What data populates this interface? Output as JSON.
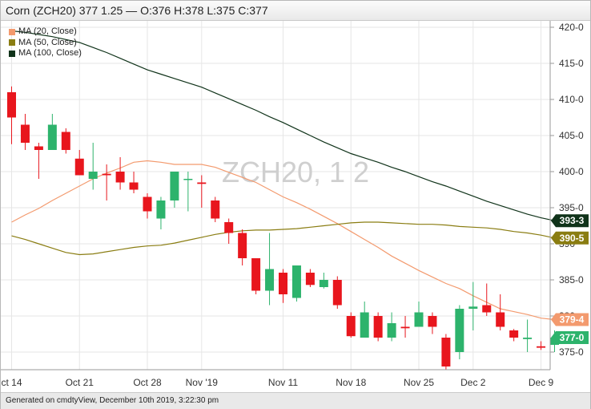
{
  "header": {
    "text": "Corn (ZCH20) 377 1.25 — O:376 H:378 L:375 C:377"
  },
  "footer": {
    "text": "Generated on cmdtyView, December 10th 2019, 3:22:30 pm"
  },
  "watermark": "ZCH20, 1 2",
  "colors": {
    "up": "#2db36c",
    "down": "#e8161d",
    "ma20": "#f39a6e",
    "ma50": "#8a7d12",
    "ma100": "#10331a",
    "grid": "#e6e6e6"
  },
  "chart_data": {
    "type": "candlestick",
    "title": "Corn (ZCH20)",
    "ylim": [
      372,
      420
    ],
    "y_ticks": [
      {
        "value": 375,
        "label": "375-0"
      },
      {
        "value": 380,
        "label": "380"
      },
      {
        "value": 385,
        "label": "385-0"
      },
      {
        "value": 390,
        "label": "390"
      },
      {
        "value": 395,
        "label": "395-0"
      },
      {
        "value": 400,
        "label": "400-0"
      },
      {
        "value": 405,
        "label": "405-0"
      },
      {
        "value": 410,
        "label": "410-0"
      },
      {
        "value": 415,
        "label": "415-0"
      },
      {
        "value": 420,
        "label": "420-0"
      }
    ],
    "x_ticks": [
      {
        "index": 0,
        "label": "ct 14"
      },
      {
        "index": 5,
        "label": "Oct 21"
      },
      {
        "index": 10,
        "label": "Oct 28"
      },
      {
        "index": 14,
        "label": "Nov '19"
      },
      {
        "index": 20,
        "label": "Nov 11"
      },
      {
        "index": 25,
        "label": "Nov 18"
      },
      {
        "index": 30,
        "label": "Nov 25"
      },
      {
        "index": 34,
        "label": "Dec 2"
      },
      {
        "index": 39,
        "label": "Dec 9"
      }
    ],
    "candles": [
      {
        "o": 411.0,
        "h": 411.8,
        "l": 403.8,
        "c": 407.5
      },
      {
        "o": 406.5,
        "h": 408.0,
        "l": 403.0,
        "c": 404.0
      },
      {
        "o": 403.5,
        "h": 404.0,
        "l": 399.0,
        "c": 403.0
      },
      {
        "o": 403.0,
        "h": 408.0,
        "l": 403.0,
        "c": 406.5
      },
      {
        "o": 405.5,
        "h": 406.0,
        "l": 402.5,
        "c": 403.0
      },
      {
        "o": 401.8,
        "h": 403.0,
        "l": 399.5,
        "c": 399.5
      },
      {
        "o": 399.0,
        "h": 404.0,
        "l": 397.5,
        "c": 400.0
      },
      {
        "o": 399.7,
        "h": 401.0,
        "l": 396.0,
        "c": 399.5
      },
      {
        "o": 400.0,
        "h": 402.0,
        "l": 397.5,
        "c": 398.5
      },
      {
        "o": 398.5,
        "h": 400.0,
        "l": 397.0,
        "c": 397.5
      },
      {
        "o": 396.5,
        "h": 397.0,
        "l": 393.5,
        "c": 394.5
      },
      {
        "o": 393.5,
        "h": 396.5,
        "l": 392.0,
        "c": 396.0
      },
      {
        "o": 396.0,
        "h": 400.0,
        "l": 395.0,
        "c": 400.0
      },
      {
        "o": 399.0,
        "h": 400.0,
        "l": 394.5,
        "c": 399.0
      },
      {
        "o": 398.5,
        "h": 399.5,
        "l": 395.0,
        "c": 398.3
      },
      {
        "o": 396.0,
        "h": 396.5,
        "l": 393.0,
        "c": 393.5
      },
      {
        "o": 393.0,
        "h": 393.5,
        "l": 390.0,
        "c": 391.5
      },
      {
        "o": 391.5,
        "h": 392.0,
        "l": 387.0,
        "c": 388.0
      },
      {
        "o": 388.0,
        "h": 388.0,
        "l": 383.0,
        "c": 383.5
      },
      {
        "o": 383.5,
        "h": 391.5,
        "l": 381.5,
        "c": 386.5
      },
      {
        "o": 386.0,
        "h": 386.5,
        "l": 381.8,
        "c": 383.0
      },
      {
        "o": 382.5,
        "h": 387.0,
        "l": 382.0,
        "c": 387.0
      },
      {
        "o": 386.0,
        "h": 386.5,
        "l": 384.0,
        "c": 384.3
      },
      {
        "o": 384.0,
        "h": 386.0,
        "l": 383.8,
        "c": 385.0
      },
      {
        "o": 385.0,
        "h": 385.5,
        "l": 381.0,
        "c": 381.5
      },
      {
        "o": 380.0,
        "h": 380.5,
        "l": 377.0,
        "c": 377.2
      },
      {
        "o": 377.0,
        "h": 382.0,
        "l": 377.0,
        "c": 380.5
      },
      {
        "o": 380.0,
        "h": 380.5,
        "l": 376.5,
        "c": 377.0
      },
      {
        "o": 377.0,
        "h": 380.5,
        "l": 376.5,
        "c": 379.0
      },
      {
        "o": 378.5,
        "h": 380.0,
        "l": 377.0,
        "c": 378.3
      },
      {
        "o": 378.5,
        "h": 382.0,
        "l": 378.5,
        "c": 380.5
      },
      {
        "o": 380.0,
        "h": 380.5,
        "l": 377.5,
        "c": 378.5
      },
      {
        "o": 377.0,
        "h": 377.5,
        "l": 372.5,
        "c": 373.0
      },
      {
        "o": 375.0,
        "h": 381.5,
        "l": 374.0,
        "c": 381.0
      },
      {
        "o": 381.0,
        "h": 384.7,
        "l": 378.0,
        "c": 381.3
      },
      {
        "o": 381.5,
        "h": 384.5,
        "l": 380.0,
        "c": 380.5
      },
      {
        "o": 380.5,
        "h": 383.0,
        "l": 378.0,
        "c": 378.5
      },
      {
        "o": 378.0,
        "h": 378.2,
        "l": 376.5,
        "c": 377.0
      },
      {
        "o": 376.8,
        "h": 379.5,
        "l": 375.0,
        "c": 377.0
      },
      {
        "o": 375.8,
        "h": 376.5,
        "l": 375.3,
        "c": 375.6
      },
      {
        "o": 376.0,
        "h": 378.0,
        "l": 375.0,
        "c": 377.0
      }
    ],
    "series": [
      {
        "name": "MA (20, Close)",
        "last_label": "379-4",
        "values": [
          393.0,
          394.0,
          394.9,
          396.0,
          397.0,
          398.0,
          399.0,
          399.8,
          400.5,
          401.3,
          401.5,
          401.3,
          401.0,
          401.0,
          401.0,
          400.6,
          399.9,
          399.2,
          398.5,
          397.5,
          396.5,
          395.7,
          394.8,
          393.8,
          392.8,
          391.7,
          390.6,
          389.5,
          388.3,
          387.3,
          386.3,
          385.4,
          384.5,
          383.8,
          382.8,
          381.9,
          381.0,
          380.6,
          380.2,
          379.7,
          379.5
        ]
      },
      {
        "name": "MA (50, Close)",
        "last_label": "390-5",
        "values": [
          391.1,
          390.6,
          390.0,
          389.4,
          388.8,
          388.5,
          388.6,
          388.9,
          389.2,
          389.5,
          389.7,
          389.8,
          390.1,
          390.5,
          390.9,
          391.3,
          391.6,
          391.8,
          391.9,
          391.9,
          392.0,
          392.1,
          392.3,
          392.5,
          392.7,
          392.9,
          393.0,
          393.0,
          392.9,
          392.8,
          392.7,
          392.7,
          392.6,
          392.4,
          392.3,
          392.2,
          392.0,
          391.7,
          391.5,
          391.2,
          390.8
        ]
      },
      {
        "name": "MA (100, Close)",
        "last_label": "393-3",
        "values": [
          419.5,
          419.3,
          419.0,
          418.7,
          418.3,
          417.9,
          417.2,
          416.5,
          415.7,
          414.9,
          414.1,
          413.5,
          412.9,
          412.3,
          411.7,
          410.9,
          410.1,
          409.3,
          408.5,
          407.6,
          406.8,
          405.9,
          405.0,
          404.1,
          403.3,
          402.5,
          401.9,
          401.3,
          400.6,
          400.0,
          399.3,
          398.6,
          398.0,
          397.3,
          396.6,
          395.9,
          395.3,
          394.7,
          394.1,
          393.6,
          393.2
        ]
      }
    ]
  }
}
